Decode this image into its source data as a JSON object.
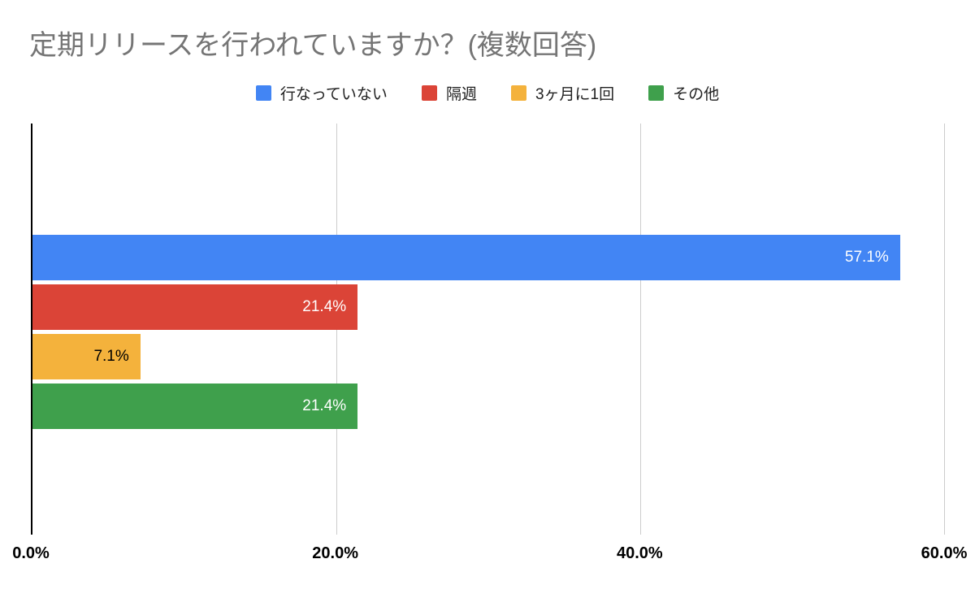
{
  "title": "定期リリースを行われていますか？(複数回答)",
  "colors": {
    "title_text": "#757575",
    "gridline": "#cccccc",
    "axis_line": "#000000",
    "blue": "#4285F4",
    "red": "#DB4437",
    "yellow": "#F4B23C",
    "green": "#3FA04C"
  },
  "chart_data": {
    "type": "bar",
    "orientation": "horizontal",
    "title": "定期リリースを行われていますか？(複数回答)",
    "xlabel": "",
    "ylabel": "",
    "xlim": [
      0,
      60
    ],
    "grid": true,
    "legend_position": "top",
    "x_ticks": [
      "0.0%",
      "20.0%",
      "40.0%",
      "60.0%"
    ],
    "series": [
      {
        "name": "行なっていない",
        "value": 57.1,
        "label": "57.1%",
        "color": "#4285F4",
        "label_color": "#ffffff"
      },
      {
        "name": "隔週",
        "value": 21.4,
        "label": "21.4%",
        "color": "#DB4437",
        "label_color": "#ffffff"
      },
      {
        "name": "3ヶ月に1回",
        "value": 7.1,
        "label": "7.1%",
        "color": "#F4B23C",
        "label_color": "#000000"
      },
      {
        "name": "その他",
        "value": 21.4,
        "label": "21.4%",
        "color": "#3FA04C",
        "label_color": "#ffffff"
      }
    ]
  }
}
